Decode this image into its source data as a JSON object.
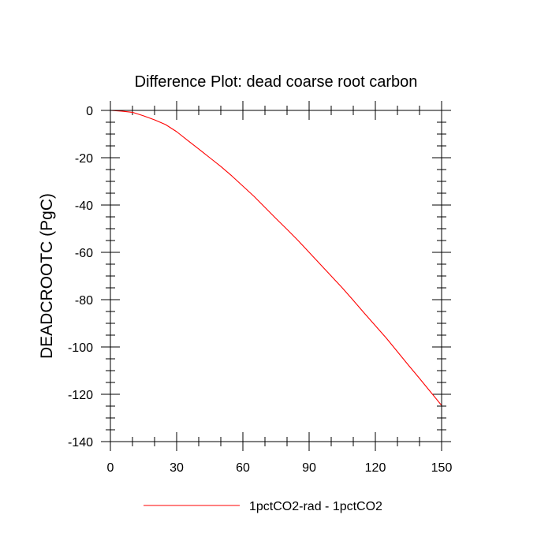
{
  "chart_data": {
    "type": "line",
    "title": "Difference Plot: dead coarse root carbon",
    "xlabel": "",
    "ylabel": "DEADCROOTC  (PgC)",
    "xlim": [
      0,
      150
    ],
    "ylim": [
      -140,
      0
    ],
    "xticks": [
      0,
      30,
      60,
      90,
      120,
      150
    ],
    "yticks": [
      0,
      -20,
      -40,
      -60,
      -80,
      -100,
      -120,
      -140
    ],
    "grid": false,
    "legend_position": "bottom-center",
    "series": [
      {
        "name": "1pctCO2-rad - 1pctCO2",
        "color": "#ff0000",
        "x": [
          0,
          5,
          10,
          15,
          20,
          25,
          30,
          35,
          40,
          45,
          50,
          55,
          60,
          65,
          70,
          75,
          80,
          85,
          90,
          95,
          100,
          105,
          110,
          115,
          120,
          125,
          130,
          135,
          140,
          145,
          150
        ],
        "y": [
          0,
          -0.3,
          -0.8,
          -2.3,
          -4.0,
          -6.0,
          -9.0,
          -12.7,
          -16.3,
          -20.0,
          -23.7,
          -27.7,
          -32.0,
          -36.3,
          -41.0,
          -45.7,
          -50.3,
          -55.0,
          -60.0,
          -65.0,
          -70.0,
          -75.0,
          -80.3,
          -85.7,
          -91.0,
          -96.3,
          -102.0,
          -107.7,
          -113.3,
          -119.0,
          -124.7
        ]
      }
    ]
  }
}
